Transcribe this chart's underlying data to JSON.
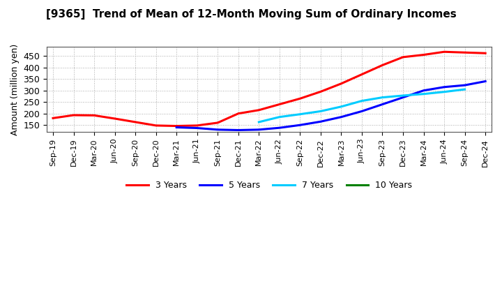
{
  "title": "[9365]  Trend of Mean of 12-Month Moving Sum of Ordinary Incomes",
  "ylabel": "Amount (million yen)",
  "background_color": "#ffffff",
  "plot_bg_color": "#ffffff",
  "grid_color": "#aaaaaa",
  "x_labels": [
    "Sep-19",
    "Dec-19",
    "Mar-20",
    "Jun-20",
    "Sep-20",
    "Dec-20",
    "Mar-21",
    "Jun-21",
    "Sep-21",
    "Dec-21",
    "Mar-22",
    "Jun-22",
    "Sep-22",
    "Dec-22",
    "Mar-23",
    "Jun-23",
    "Sep-23",
    "Dec-23",
    "Mar-24",
    "Jun-24",
    "Sep-24",
    "Dec-24"
  ],
  "ylim": [
    120,
    490
  ],
  "yticks": [
    150,
    200,
    250,
    300,
    350,
    400,
    450
  ],
  "series": {
    "3 Years": {
      "color": "#ff0000",
      "data_x": [
        0,
        1,
        2,
        3,
        4,
        5,
        6,
        7,
        8,
        9,
        10,
        11,
        12,
        13,
        14,
        15,
        16,
        17,
        18,
        19,
        20,
        21
      ],
      "data_y": [
        180,
        193,
        192,
        178,
        163,
        148,
        146,
        148,
        160,
        200,
        215,
        240,
        265,
        295,
        330,
        370,
        410,
        445,
        455,
        468,
        465,
        462
      ]
    },
    "5 Years": {
      "color": "#0000ff",
      "data_x": [
        6,
        7,
        8,
        9,
        10,
        11,
        12,
        13,
        14,
        15,
        16,
        17,
        18,
        19,
        20,
        21
      ],
      "data_y": [
        140,
        137,
        130,
        128,
        130,
        138,
        150,
        165,
        185,
        210,
        240,
        270,
        300,
        315,
        323,
        340
      ]
    },
    "7 Years": {
      "color": "#00ccff",
      "data_x": [
        10,
        11,
        12,
        13,
        14,
        15,
        16,
        17,
        18,
        19,
        20
      ],
      "data_y": [
        163,
        185,
        197,
        210,
        230,
        255,
        270,
        278,
        285,
        294,
        305
      ]
    },
    "10 Years": {
      "color": "#008000",
      "data_x": [],
      "data_y": []
    }
  },
  "legend_order": [
    "3 Years",
    "5 Years",
    "7 Years",
    "10 Years"
  ]
}
